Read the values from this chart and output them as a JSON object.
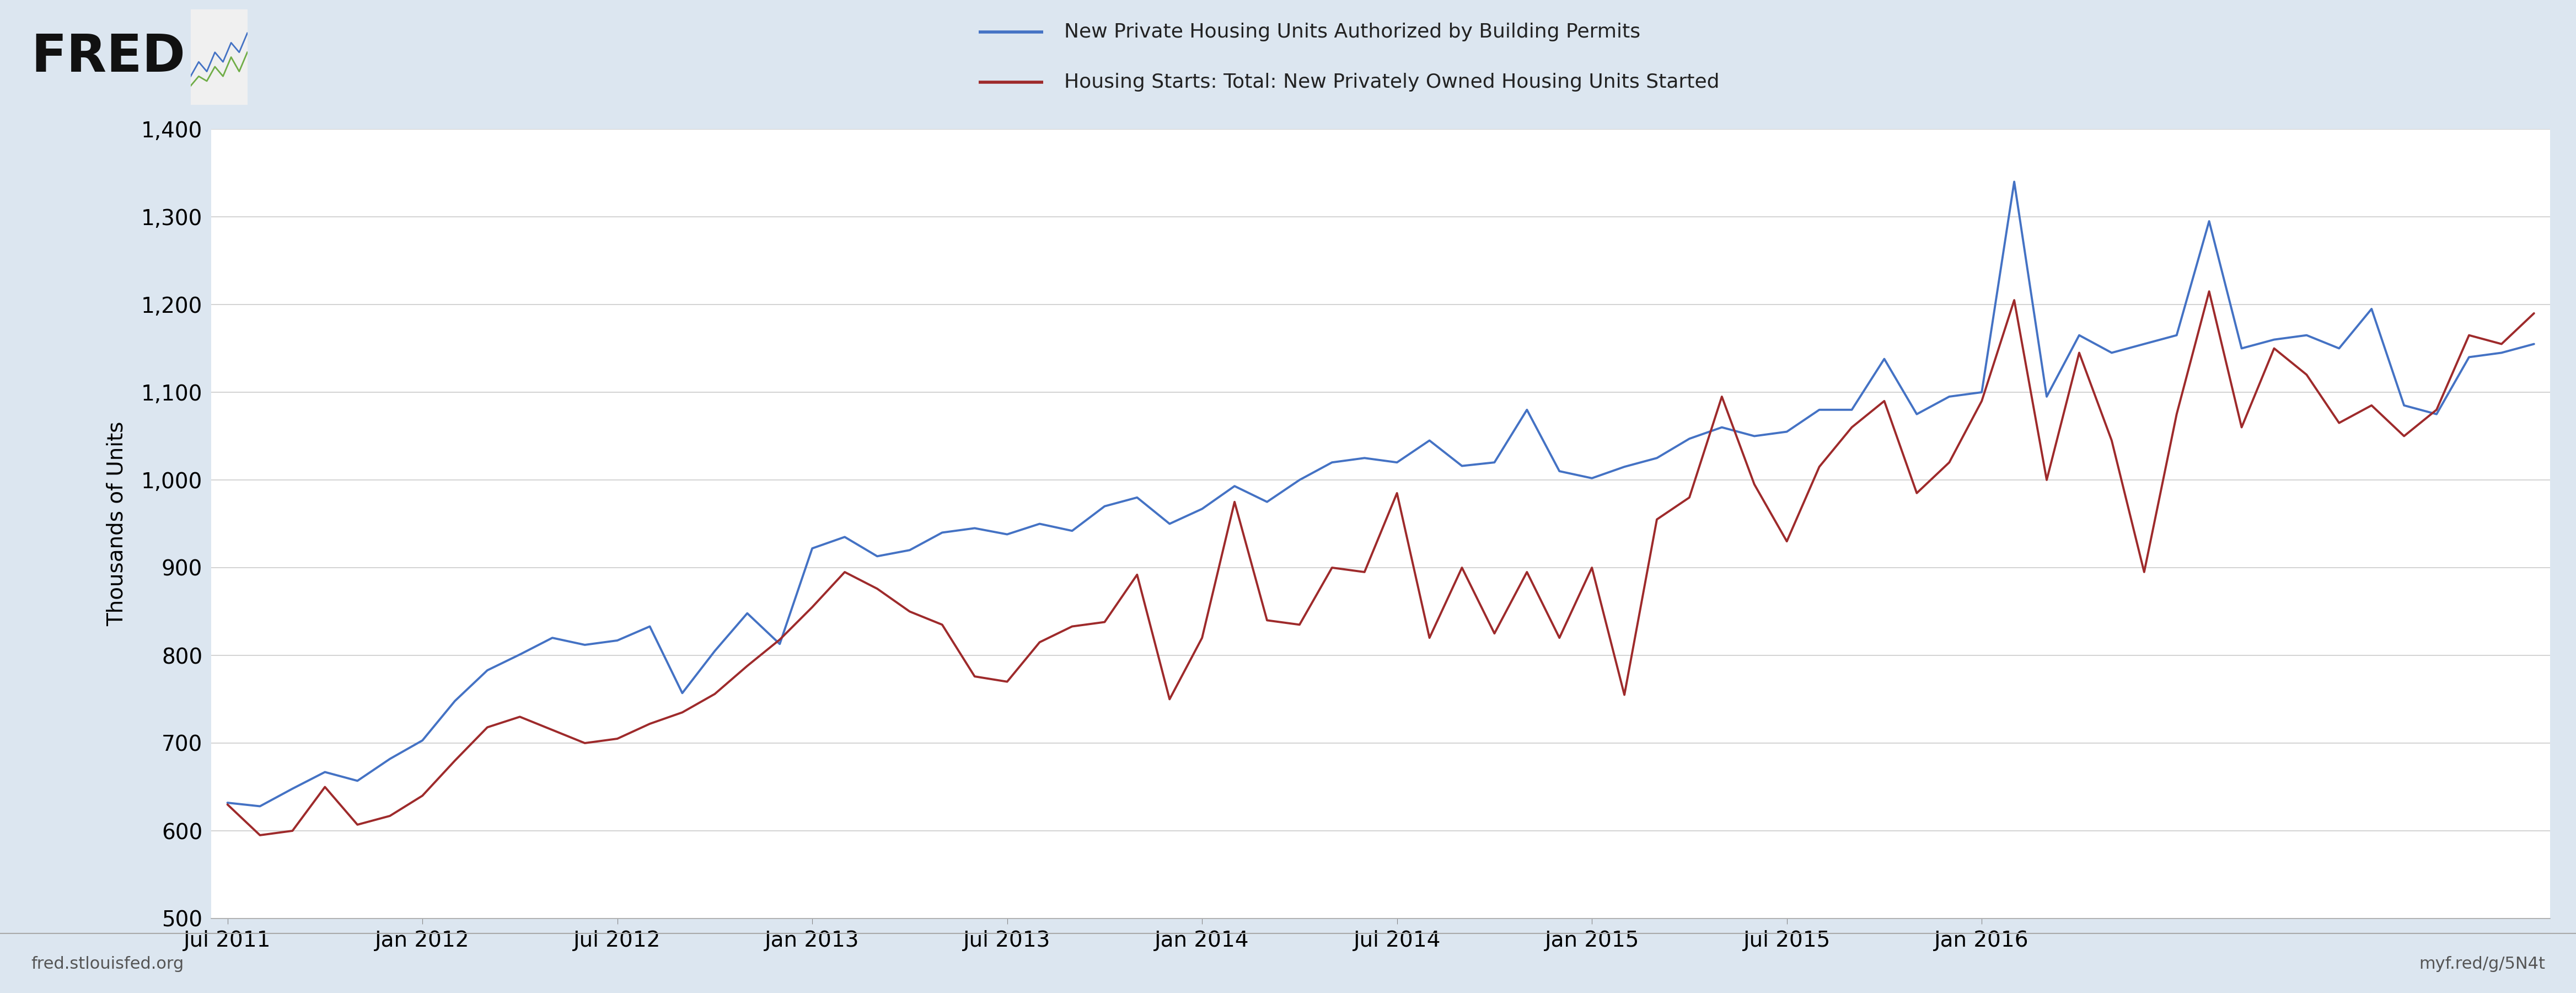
{
  "background_color": "#dce6f0",
  "plot_background_color": "#ffffff",
  "ylabel": "Thousands of Units",
  "ylim": [
    500,
    1400
  ],
  "yticks": [
    500,
    600,
    700,
    800,
    900,
    1000,
    1100,
    1200,
    1300,
    1400
  ],
  "legend1": "New Private Housing Units Authorized by Building Permits",
  "legend2": "Housing Starts: Total: New Privately Owned Housing Units Started",
  "legend1_color": "#4472c4",
  "legend2_color": "#9e2a2b",
  "footer_left": "fred.stlouisfed.org",
  "footer_right": "myf.red/g/5N4t",
  "permits": [
    632,
    628,
    648,
    667,
    657,
    682,
    703,
    748,
    783,
    801,
    820,
    812,
    817,
    833,
    757,
    805,
    848,
    813,
    922,
    935,
    913,
    920,
    940,
    945,
    938,
    950,
    942,
    970,
    980,
    950,
    967,
    993,
    975,
    1000,
    1020,
    1025,
    1020,
    1045,
    1016,
    1020,
    1080,
    1010,
    1002,
    1015,
    1025,
    1047,
    1060,
    1050,
    1055,
    1080,
    1080,
    1138,
    1075,
    1095,
    1100,
    1340,
    1095,
    1165,
    1145,
    1155,
    1165,
    1295,
    1150,
    1160,
    1165,
    1150,
    1195,
    1085,
    1075,
    1140,
    1145,
    1155
  ],
  "starts": [
    630,
    595,
    600,
    650,
    607,
    617,
    640,
    680,
    718,
    730,
    715,
    700,
    705,
    722,
    735,
    756,
    788,
    818,
    855,
    895,
    876,
    850,
    835,
    776,
    770,
    815,
    833,
    838,
    892,
    750,
    820,
    975,
    840,
    835,
    900,
    895,
    985,
    820,
    900,
    825,
    895,
    820,
    900,
    755,
    955,
    980,
    1095,
    995,
    930,
    1015,
    1060,
    1090,
    985,
    1020,
    1090,
    1205,
    1000,
    1145,
    1045,
    895,
    1075,
    1215,
    1060,
    1150,
    1120,
    1065,
    1085,
    1050,
    1080,
    1165,
    1155,
    1190
  ],
  "x_tick_labels": [
    "Jul 2011",
    "Jan 2012",
    "Jul 2012",
    "Jan 2013",
    "Jul 2013",
    "Jan 2014",
    "Jul 2014",
    "Jan 2015",
    "Jul 2015",
    "Jan 2016"
  ],
  "x_tick_positions": [
    0,
    6,
    12,
    18,
    24,
    30,
    36,
    42,
    48,
    54
  ]
}
